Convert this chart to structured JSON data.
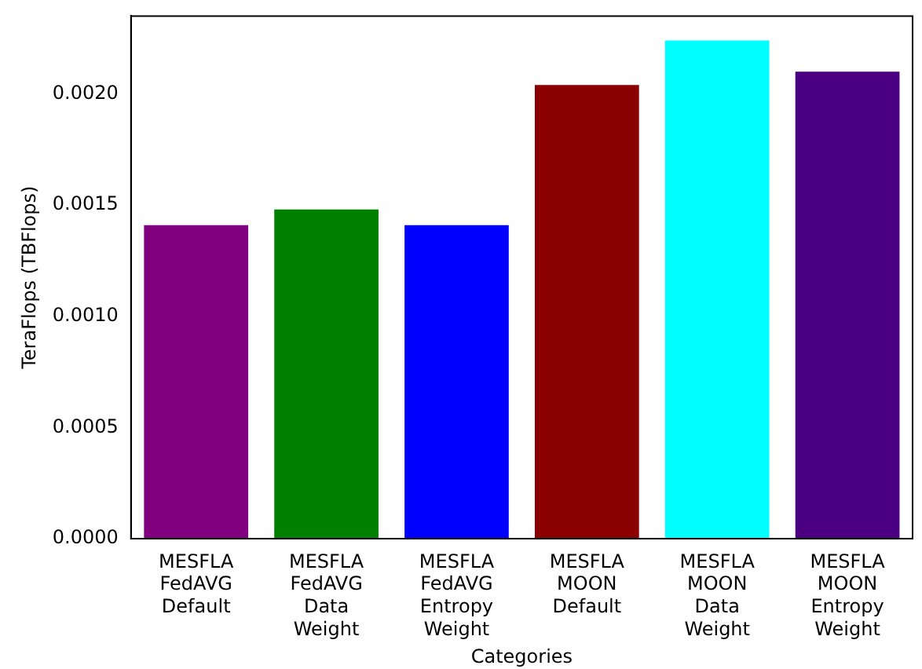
{
  "chart_data": {
    "type": "bar",
    "xlabel": "Categories",
    "ylabel": "TeraFlops (TBFlops)",
    "categories": [
      "MESFLA FedAVG Default",
      "MESFLA FedAVG Data Weight",
      "MESFLA FedAVG Entropy Weight",
      "MESFLA MOON Default",
      "MESFLA MOON Data Weight",
      "MESFLA MOON Entropy Weight"
    ],
    "values": [
      0.00141,
      0.00148,
      0.00141,
      0.00204,
      0.00224,
      0.0021
    ],
    "colors": [
      "#800080",
      "#008000",
      "#0000ff",
      "#8b0000",
      "#00ffff",
      "#4b0082"
    ],
    "ylim": [
      0,
      0.00235
    ],
    "yticks": [
      {
        "value": 0,
        "label": "0.0000"
      },
      {
        "value": 0.0005,
        "label": "0.0005"
      },
      {
        "value": 0.001,
        "label": "0.0010"
      },
      {
        "value": 0.0015,
        "label": "0.0015"
      },
      {
        "value": 0.002,
        "label": "0.0020"
      }
    ],
    "grid": false,
    "legend": false
  }
}
